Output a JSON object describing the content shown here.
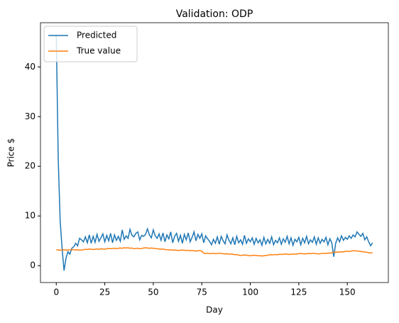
{
  "chart_data": {
    "type": "line",
    "title": "Validation: ODP",
    "xlabel": "Day",
    "ylabel": "Price $",
    "x": [
      0,
      1,
      2,
      3,
      4,
      5,
      6,
      7,
      8,
      9,
      10,
      11,
      12,
      13,
      14,
      15,
      16,
      17,
      18,
      19,
      20,
      21,
      22,
      23,
      24,
      25,
      26,
      27,
      28,
      29,
      30,
      31,
      32,
      33,
      34,
      35,
      36,
      37,
      38,
      39,
      40,
      41,
      42,
      43,
      44,
      45,
      46,
      47,
      48,
      49,
      50,
      51,
      52,
      53,
      54,
      55,
      56,
      57,
      58,
      59,
      60,
      61,
      62,
      63,
      64,
      65,
      66,
      67,
      68,
      69,
      70,
      71,
      72,
      73,
      74,
      75,
      76,
      77,
      78,
      79,
      80,
      81,
      82,
      83,
      84,
      85,
      86,
      87,
      88,
      89,
      90,
      91,
      92,
      93,
      94,
      95,
      96,
      97,
      98,
      99,
      100,
      101,
      102,
      103,
      104,
      105,
      106,
      107,
      108,
      109,
      110,
      111,
      112,
      113,
      114,
      115,
      116,
      117,
      118,
      119,
      120,
      121,
      122,
      123,
      124,
      125,
      126,
      127,
      128,
      129,
      130,
      131,
      132,
      133,
      134,
      135,
      136,
      137,
      138,
      139,
      140,
      141,
      142,
      143,
      144,
      145,
      146,
      147,
      148,
      149,
      150,
      151,
      152,
      153,
      154,
      155,
      156,
      157,
      158,
      159,
      160,
      161,
      162,
      163
    ],
    "series": [
      {
        "name": "Predicted",
        "color": "#1f77b4",
        "values": [
          46.5,
          21.5,
          9,
          3.5,
          -1,
          1.5,
          2.8,
          2.3,
          3.5,
          3.8,
          4.5,
          4,
          5.5,
          5.2,
          4.8,
          5.8,
          4.6,
          6.2,
          4.5,
          5.9,
          4.7,
          6.3,
          4.9,
          5.6,
          6.4,
          4.8,
          6.1,
          5,
          6.5,
          4.6,
          6.2,
          5.1,
          5.9,
          4.9,
          7.2,
          5.3,
          6,
          5.5,
          7.3,
          6.1,
          5.8,
          6.5,
          6.8,
          5.2,
          6.1,
          5.9,
          6.3,
          7.4,
          6.2,
          5.6,
          7.2,
          6,
          5.5,
          6.4,
          5.1,
          6.6,
          4.8,
          6.2,
          5.4,
          6.8,
          4.6,
          5.9,
          6.5,
          4.9,
          6.1,
          4.5,
          6.3,
          5.2,
          6.6,
          4.8,
          5.7,
          6.8,
          5,
          6.3,
          5.5,
          6.4,
          4.6,
          6,
          5.4,
          4.9,
          4.2,
          5.3,
          4.5,
          5.8,
          4.3,
          5.9,
          5,
          4.4,
          6.2,
          5.1,
          4.4,
          5.6,
          4.2,
          5.9,
          4.6,
          5.2,
          4.3,
          6.1,
          4.5,
          5.4,
          4.8,
          5.6,
          4.3,
          5.5,
          4.6,
          5.2,
          4.1,
          5.7,
          4.4,
          5.3,
          4.5,
          5.8,
          4.2,
          5.1,
          4.6,
          5.6,
          4.3,
          5.4,
          4.7,
          5.9,
          4.4,
          5.6,
          4.1,
          5.3,
          4.8,
          5.7,
          4.2,
          5.5,
          4.6,
          5.9,
          4.4,
          5.2,
          4.7,
          5.8,
          4.3,
          5.6,
          4.5,
          5.3,
          4.8,
          5.7,
          4.2,
          5.4,
          4.6,
          1.8,
          4.5,
          5.6,
          4.8,
          6,
          5.1,
          5.7,
          5.3,
          6,
          5.5,
          6.2,
          5.8,
          6.8,
          6.3,
          5.9,
          6.5,
          5.2,
          5.8,
          4.8,
          4,
          4.6
        ]
      },
      {
        "name": "True value",
        "color": "#ff7f0e",
        "values": [
          3.2,
          3.15,
          3.1,
          3.15,
          3.2,
          3.1,
          3.15,
          3.2,
          3.25,
          3.2,
          3.15,
          3.2,
          3.1,
          3.15,
          3.2,
          3.3,
          3.25,
          3.35,
          3.3,
          3.25,
          3.3,
          3.35,
          3.3,
          3.4,
          3.35,
          3.3,
          3.4,
          3.45,
          3.4,
          3.45,
          3.5,
          3.45,
          3.5,
          3.55,
          3.5,
          3.6,
          3.55,
          3.6,
          3.5,
          3.55,
          3.4,
          3.45,
          3.5,
          3.4,
          3.45,
          3.55,
          3.6,
          3.55,
          3.5,
          3.55,
          3.5,
          3.45,
          3.4,
          3.35,
          3.3,
          3.35,
          3.25,
          3.2,
          3.15,
          3.2,
          3.1,
          3.15,
          3.1,
          3.05,
          3.1,
          3.15,
          3.1,
          3.05,
          3.1,
          3,
          3.05,
          3,
          2.95,
          3,
          3.05,
          2.9,
          2.5,
          2.45,
          2.5,
          2.4,
          2.45,
          2.5,
          2.4,
          2.45,
          2.5,
          2.45,
          2.4,
          2.35,
          2.4,
          2.3,
          2.35,
          2.3,
          2.2,
          2.25,
          2.1,
          2.05,
          2.1,
          2.15,
          2.1,
          2.05,
          2,
          2.05,
          2.1,
          2.05,
          2,
          2,
          1.95,
          2,
          2.05,
          2.1,
          2.2,
          2.15,
          2.2,
          2.25,
          2.2,
          2.3,
          2.25,
          2.3,
          2.35,
          2.3,
          2.25,
          2.3,
          2.35,
          2.3,
          2.35,
          2.4,
          2.45,
          2.4,
          2.35,
          2.4,
          2.45,
          2.4,
          2.5,
          2.45,
          2.4,
          2.35,
          2.4,
          2.45,
          2.5,
          2.45,
          2.55,
          2.5,
          2.6,
          2.7,
          2.75,
          2.7,
          2.8,
          2.75,
          2.8,
          2.85,
          2.9,
          2.85,
          2.95,
          3,
          3,
          2.95,
          2.9,
          2.85,
          2.8,
          2.75,
          2.7,
          2.6,
          2.55,
          2.6
        ]
      }
    ],
    "xlim": [
      -8.15,
      171.15
    ],
    "xticks": [
      0,
      25,
      50,
      75,
      100,
      125,
      150
    ],
    "ylim": [
      -3.4,
      48.9
    ],
    "yticks": [
      0,
      10,
      20,
      30,
      40
    ],
    "legend": "upper left"
  }
}
